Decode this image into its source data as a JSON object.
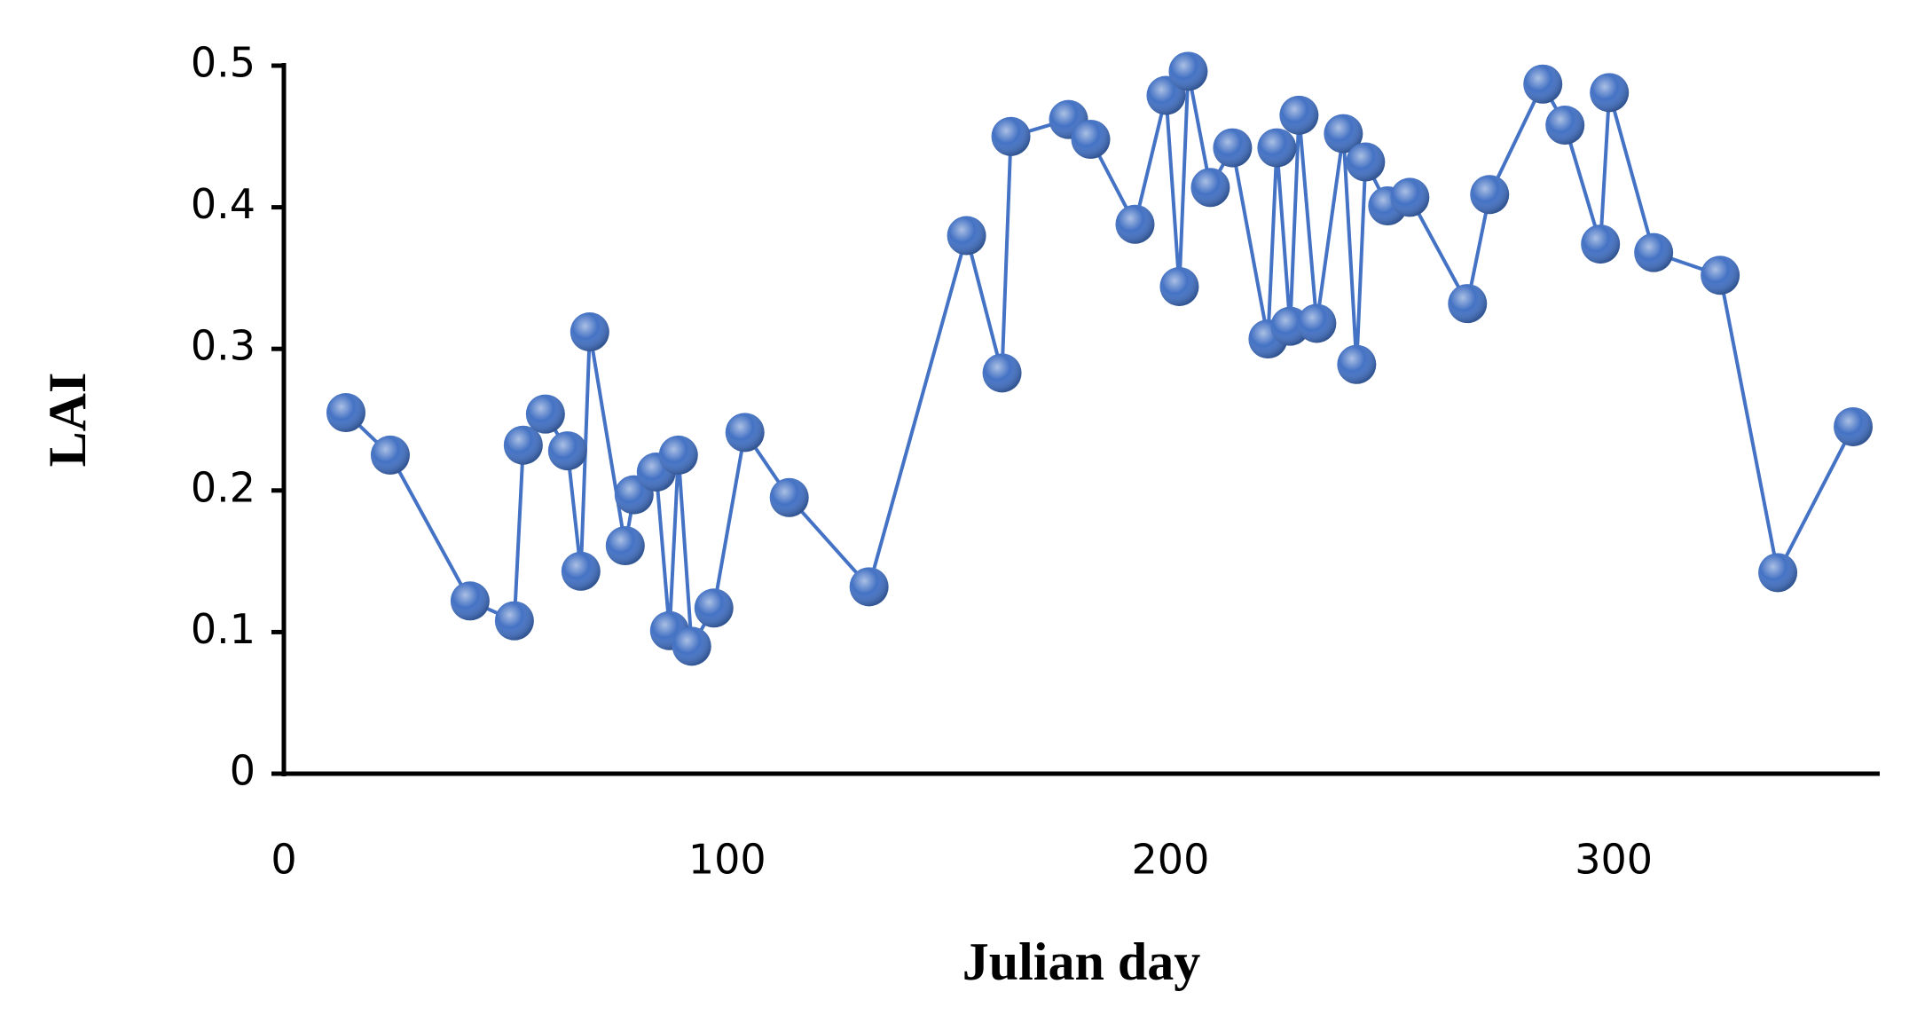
{
  "chart_data": {
    "type": "line",
    "x_label": "Julian day",
    "y_label": "LAI",
    "x": [
      14,
      24,
      42,
      52,
      54,
      59,
      64,
      67,
      69,
      77,
      79,
      84,
      87,
      89,
      92,
      97,
      104,
      114,
      132,
      154,
      162,
      164,
      177,
      182,
      192,
      199,
      202,
      204,
      209,
      214,
      222,
      224,
      227,
      229,
      233,
      239,
      242,
      244,
      249,
      254,
      267,
      272,
      284,
      289,
      297,
      299,
      309,
      324,
      337,
      354
    ],
    "series": [
      {
        "name": "LAI",
        "color": "#4472c4",
        "values": [
          0.255,
          0.225,
          0.122,
          0.108,
          0.232,
          0.254,
          0.228,
          0.143,
          0.312,
          0.161,
          0.197,
          0.213,
          0.101,
          0.225,
          0.09,
          0.117,
          0.241,
          0.195,
          0.132,
          0.38,
          0.283,
          0.45,
          0.462,
          0.448,
          0.388,
          0.479,
          0.344,
          0.496,
          0.414,
          0.442,
          0.307,
          0.442,
          0.316,
          0.465,
          0.318,
          0.452,
          0.289,
          0.432,
          0.401,
          0.407,
          0.332,
          0.409,
          0.487,
          0.458,
          0.374,
          0.481,
          0.368,
          0.352,
          0.142,
          0.245
        ]
      }
    ],
    "xlim": [
      0,
      360
    ],
    "xticks": [
      0,
      100,
      200,
      300
    ],
    "ylim": [
      0,
      0.5
    ],
    "yticks": [
      0,
      0.1,
      0.2,
      0.3,
      0.4,
      0.5
    ],
    "grid": false
  }
}
